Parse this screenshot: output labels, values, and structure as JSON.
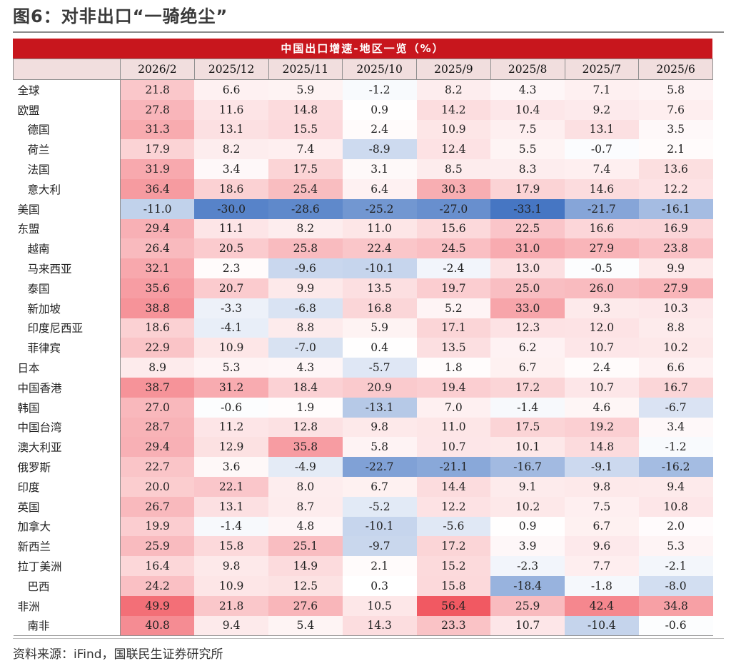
{
  "figure": {
    "title": "图6：对非出口“一骑绝尘”",
    "source": "资料来源：iFind，国联民生证券研究所"
  },
  "colors": {
    "banner": "#c8161d",
    "header_bg": "#f1dede",
    "positive_max": "#f0505a",
    "negative_max": "#3c6fc0"
  },
  "chart_data": {
    "type": "heatmap",
    "title": "中国出口增速-地区一览（%）",
    "columns": [
      "2026/2",
      "2025/12",
      "2025/11",
      "2025/10",
      "2025/9",
      "2025/8",
      "2025/7",
      "2025/6"
    ],
    "rows": [
      {
        "name": "全球",
        "sub": false,
        "values": [
          21.8,
          6.6,
          5.9,
          -1.2,
          8.2,
          4.3,
          7.1,
          5.8
        ]
      },
      {
        "name": "欧盟",
        "sub": false,
        "values": [
          27.8,
          11.6,
          14.8,
          0.9,
          14.2,
          10.4,
          9.2,
          7.6
        ]
      },
      {
        "name": "德国",
        "sub": true,
        "values": [
          31.3,
          13.1,
          15.5,
          2.4,
          10.9,
          7.5,
          13.1,
          3.5
        ]
      },
      {
        "name": "荷兰",
        "sub": true,
        "values": [
          17.9,
          8.2,
          7.4,
          -8.9,
          12.4,
          5.5,
          -0.7,
          2.1
        ]
      },
      {
        "name": "法国",
        "sub": true,
        "values": [
          31.9,
          3.4,
          17.5,
          3.1,
          8.5,
          8.3,
          7.4,
          13.6
        ]
      },
      {
        "name": "意大利",
        "sub": true,
        "values": [
          36.4,
          18.6,
          25.4,
          6.4,
          30.3,
          17.9,
          14.6,
          12.2
        ]
      },
      {
        "name": "美国",
        "sub": false,
        "values": [
          -11.0,
          -30.0,
          -28.6,
          -25.2,
          -27.0,
          -33.1,
          -21.7,
          -16.1
        ]
      },
      {
        "name": "东盟",
        "sub": false,
        "values": [
          29.4,
          11.1,
          8.2,
          11.0,
          15.6,
          22.5,
          16.6,
          16.9
        ]
      },
      {
        "name": "越南",
        "sub": true,
        "values": [
          26.4,
          20.5,
          25.8,
          22.4,
          24.5,
          31.0,
          27.9,
          23.8
        ]
      },
      {
        "name": "马来西亚",
        "sub": true,
        "values": [
          32.1,
          2.3,
          -9.6,
          -10.1,
          -2.4,
          13.0,
          -0.5,
          9.9
        ]
      },
      {
        "name": "泰国",
        "sub": true,
        "values": [
          35.6,
          20.7,
          9.9,
          13.5,
          19.7,
          25.0,
          26.0,
          27.9
        ]
      },
      {
        "name": "新加坡",
        "sub": true,
        "values": [
          38.8,
          -3.3,
          -6.8,
          16.8,
          5.2,
          33.0,
          9.3,
          10.3
        ]
      },
      {
        "name": "印度尼西亚",
        "sub": true,
        "values": [
          18.6,
          -4.1,
          8.8,
          5.9,
          17.1,
          12.3,
          12.0,
          8.8
        ]
      },
      {
        "name": "菲律宾",
        "sub": true,
        "values": [
          22.9,
          10.9,
          -7.0,
          0.4,
          13.5,
          6.2,
          10.7,
          10.2
        ]
      },
      {
        "name": "日本",
        "sub": false,
        "values": [
          8.9,
          5.3,
          4.3,
          -5.7,
          1.8,
          6.7,
          2.4,
          6.6
        ]
      },
      {
        "name": "中国香港",
        "sub": false,
        "values": [
          38.7,
          31.2,
          18.4,
          20.9,
          19.4,
          17.2,
          10.7,
          16.7
        ]
      },
      {
        "name": "韩国",
        "sub": false,
        "values": [
          27.0,
          -0.6,
          1.9,
          -13.1,
          7.0,
          -1.4,
          4.6,
          -6.7
        ]
      },
      {
        "name": "中国台湾",
        "sub": false,
        "values": [
          28.7,
          11.2,
          12.8,
          9.8,
          11.0,
          17.5,
          19.2,
          3.4
        ]
      },
      {
        "name": "澳大利亚",
        "sub": false,
        "values": [
          29.4,
          12.9,
          35.8,
          5.8,
          10.7,
          10.1,
          14.8,
          -1.2
        ]
      },
      {
        "name": "俄罗斯",
        "sub": false,
        "values": [
          22.7,
          3.6,
          -4.9,
          -22.7,
          -21.1,
          -16.7,
          -9.1,
          -16.2
        ]
      },
      {
        "name": "印度",
        "sub": false,
        "values": [
          20.0,
          22.1,
          8.0,
          6.7,
          14.4,
          9.1,
          9.8,
          9.4
        ]
      },
      {
        "name": "英国",
        "sub": false,
        "values": [
          26.7,
          13.1,
          8.7,
          -5.2,
          12.2,
          10.2,
          7.5,
          10.8
        ]
      },
      {
        "name": "加拿大",
        "sub": false,
        "values": [
          19.9,
          -1.4,
          4.8,
          -10.1,
          -5.6,
          0.9,
          6.7,
          2.0
        ]
      },
      {
        "name": "新西兰",
        "sub": false,
        "values": [
          25.9,
          15.8,
          25.1,
          -9.7,
          17.2,
          3.9,
          9.6,
          5.3
        ]
      },
      {
        "name": "拉丁美洲",
        "sub": false,
        "values": [
          16.4,
          9.8,
          14.9,
          2.1,
          15.2,
          -2.3,
          7.7,
          -2.1
        ]
      },
      {
        "name": "巴西",
        "sub": true,
        "values": [
          24.2,
          10.9,
          12.5,
          0.3,
          15.8,
          -18.4,
          -1.8,
          -8.0
        ]
      },
      {
        "name": "非洲",
        "sub": false,
        "values": [
          49.9,
          21.8,
          27.6,
          10.5,
          56.4,
          25.9,
          42.4,
          34.8
        ]
      },
      {
        "name": "南非",
        "sub": true,
        "values": [
          40.8,
          9.4,
          5.4,
          14.3,
          23.3,
          10.7,
          -10.4,
          -0.6
        ]
      }
    ]
  }
}
